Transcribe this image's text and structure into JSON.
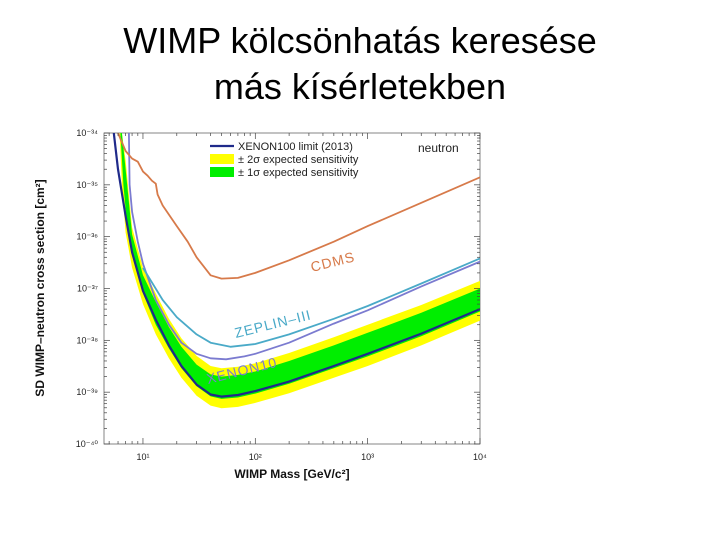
{
  "slide": {
    "title_line1": "WIMP kölcsönhatás keresése",
    "title_line2": "más kísérletekben"
  },
  "chart_data": {
    "type": "line",
    "title": "",
    "xlabel": "WIMP Mass [GeV/c²]",
    "ylabel": "SD WIMP–neutron cross section [cm²]",
    "xscale": "log",
    "yscale": "log",
    "xlim": [
      4.5,
      10000
    ],
    "ylim": [
      1e-40,
      1e-34
    ],
    "x_ticks": [
      "10¹",
      "10²",
      "10³",
      "10⁴"
    ],
    "y_ticks": [
      "10⁻⁴⁰",
      "10⁻³⁹",
      "10⁻³⁸",
      "10⁻³⁷",
      "10⁻³⁶",
      "10⁻³⁵",
      "10⁻³⁴"
    ],
    "corner_text": "neutron",
    "legend_position": "top-right",
    "legend": [
      {
        "label": "XENON100 limit (2013)",
        "color": "#1f2a8a",
        "kind": "line"
      },
      {
        "label": "± 2σ expected sensitivity",
        "color": "#ffff00",
        "kind": "band"
      },
      {
        "label": "± 1σ expected sensitivity",
        "color": "#00ee00",
        "kind": "band"
      }
    ],
    "annotations": [
      {
        "text": "CDMS",
        "color": "#d77a4a"
      },
      {
        "text": "ZEPLIN–III",
        "color": "#4aaac8"
      },
      {
        "text": "XENON10",
        "color": "#7b7bd0"
      }
    ],
    "series": [
      {
        "name": "XENON100 limit (2013)",
        "color": "#1f2a8a",
        "points": [
          [
            5.5,
            1e-34
          ],
          [
            6,
            2e-35
          ],
          [
            7,
            2.5e-36
          ],
          [
            8,
            5e-37
          ],
          [
            10,
            9e-38
          ],
          [
            13,
            2.5e-38
          ],
          [
            17,
            8e-39
          ],
          [
            22,
            3.2e-39
          ],
          [
            30,
            1.4e-39
          ],
          [
            40,
            9e-40
          ],
          [
            50,
            8.2e-40
          ],
          [
            70,
            8.8e-40
          ],
          [
            100,
            1.05e-39
          ],
          [
            200,
            1.6e-39
          ],
          [
            500,
            3.2e-39
          ],
          [
            1000,
            5.5e-39
          ],
          [
            3000,
            1.35e-38
          ],
          [
            10000,
            4e-38
          ]
        ]
      },
      {
        "name": "CDMS",
        "color": "#d77a4a",
        "points": [
          [
            6,
            1e-34
          ],
          [
            7,
            4.5e-35
          ],
          [
            8,
            3.2e-35
          ],
          [
            9,
            2.8e-35
          ],
          [
            10,
            1.8e-35
          ],
          [
            11,
            1.5e-35
          ],
          [
            12,
            1.2e-35
          ],
          [
            13,
            1.05e-35
          ],
          [
            13.5,
            6.5e-36
          ],
          [
            15,
            4e-36
          ],
          [
            20,
            1.6e-36
          ],
          [
            25,
            8e-37
          ],
          [
            30,
            4e-37
          ],
          [
            40,
            1.8e-37
          ],
          [
            50,
            1.55e-37
          ],
          [
            70,
            1.6e-37
          ],
          [
            100,
            2e-37
          ],
          [
            200,
            3.5e-37
          ],
          [
            500,
            8e-37
          ],
          [
            1000,
            1.6e-36
          ],
          [
            3000,
            4.5e-36
          ],
          [
            10000,
            1.4e-35
          ]
        ]
      },
      {
        "name": "ZEPLIN–III",
        "color": "#4aaac8",
        "points": [
          [
            10,
            2.5e-37
          ],
          [
            15,
            6e-38
          ],
          [
            20,
            2.8e-38
          ],
          [
            30,
            1.3e-38
          ],
          [
            40,
            9e-39
          ],
          [
            60,
            7.5e-39
          ],
          [
            100,
            8.5e-39
          ],
          [
            200,
            1.3e-38
          ],
          [
            500,
            2.6e-38
          ],
          [
            1000,
            4.6e-38
          ],
          [
            3000,
            1.25e-37
          ],
          [
            10000,
            3.8e-37
          ]
        ]
      },
      {
        "name": "XENON10",
        "color": "#7b7bd0",
        "points": [
          [
            7.5,
            1e-34
          ],
          [
            7.6,
            1e-35
          ],
          [
            8,
            3e-36
          ],
          [
            9,
            8e-37
          ],
          [
            10,
            3e-37
          ],
          [
            13,
            6e-38
          ],
          [
            17,
            2e-38
          ],
          [
            22,
            9e-39
          ],
          [
            30,
            5.5e-39
          ],
          [
            40,
            4.5e-39
          ],
          [
            55,
            4.3e-39
          ],
          [
            80,
            4.9e-39
          ],
          [
            100,
            5.5e-39
          ],
          [
            200,
            9e-39
          ],
          [
            500,
            2.1e-38
          ],
          [
            1000,
            3.8e-38
          ],
          [
            3000,
            1.1e-37
          ],
          [
            10000,
            3.3e-37
          ]
        ]
      }
    ],
    "bands": [
      {
        "name": "± 2σ expected sensitivity",
        "color": "#ffff00",
        "upper": [
          [
            6.5,
            1e-34
          ],
          [
            7,
            3e-35
          ],
          [
            8,
            1.5e-36
          ],
          [
            10,
            2.5e-37
          ],
          [
            13,
            8e-38
          ],
          [
            17,
            2.6e-38
          ],
          [
            22,
            1.1e-38
          ],
          [
            30,
            5e-39
          ],
          [
            40,
            3.2e-39
          ],
          [
            50,
            2.9e-39
          ],
          [
            70,
            3.1e-39
          ],
          [
            100,
            3.6e-39
          ],
          [
            200,
            5.7e-39
          ],
          [
            500,
            1.15e-38
          ],
          [
            1000,
            2e-38
          ],
          [
            3000,
            4.8e-38
          ],
          [
            10000,
            1.4e-37
          ]
        ],
        "lower": [
          [
            6.2,
            1e-34
          ],
          [
            6.5,
            1e-35
          ],
          [
            7,
            1.2e-36
          ],
          [
            8,
            2.5e-37
          ],
          [
            10,
            5e-38
          ],
          [
            13,
            1.3e-38
          ],
          [
            17,
            4.5e-39
          ],
          [
            22,
            1.9e-39
          ],
          [
            30,
            8.5e-40
          ],
          [
            40,
            5.5e-40
          ],
          [
            50,
            4.9e-40
          ],
          [
            70,
            5.2e-40
          ],
          [
            100,
            6.2e-40
          ],
          [
            200,
            9.5e-40
          ],
          [
            500,
            1.9e-39
          ],
          [
            1000,
            3.2e-39
          ],
          [
            3000,
            8e-39
          ],
          [
            10000,
            2.4e-38
          ]
        ]
      },
      {
        "name": "± 1σ expected sensitivity",
        "color": "#00ee00",
        "upper": [
          [
            6.5,
            1e-34
          ],
          [
            7,
            2e-35
          ],
          [
            8,
            1.1e-36
          ],
          [
            10,
            1.8e-37
          ],
          [
            13,
            5.5e-38
          ],
          [
            17,
            1.8e-38
          ],
          [
            22,
            7.5e-39
          ],
          [
            30,
            3.4e-39
          ],
          [
            40,
            2.2e-39
          ],
          [
            50,
            2e-39
          ],
          [
            70,
            2.15e-39
          ],
          [
            100,
            2.5e-39
          ],
          [
            200,
            4e-39
          ],
          [
            500,
            8e-39
          ],
          [
            1000,
            1.4e-38
          ],
          [
            3000,
            3.4e-38
          ],
          [
            10000,
            1e-37
          ]
        ],
        "lower": [
          [
            6.3,
            1e-34
          ],
          [
            6.7,
            1e-35
          ],
          [
            7.3,
            1.3e-36
          ],
          [
            8.5,
            2.8e-37
          ],
          [
            10,
            8e-38
          ],
          [
            13,
            2e-38
          ],
          [
            17,
            7e-39
          ],
          [
            22,
            2.9e-39
          ],
          [
            30,
            1.3e-39
          ],
          [
            40,
            8.3e-40
          ],
          [
            50,
            7.4e-40
          ],
          [
            70,
            7.9e-40
          ],
          [
            100,
            9.4e-40
          ],
          [
            200,
            1.45e-39
          ],
          [
            500,
            2.9e-39
          ],
          [
            1000,
            4.9e-39
          ],
          [
            3000,
            1.2e-38
          ],
          [
            10000,
            3.6e-38
          ]
        ]
      }
    ]
  }
}
